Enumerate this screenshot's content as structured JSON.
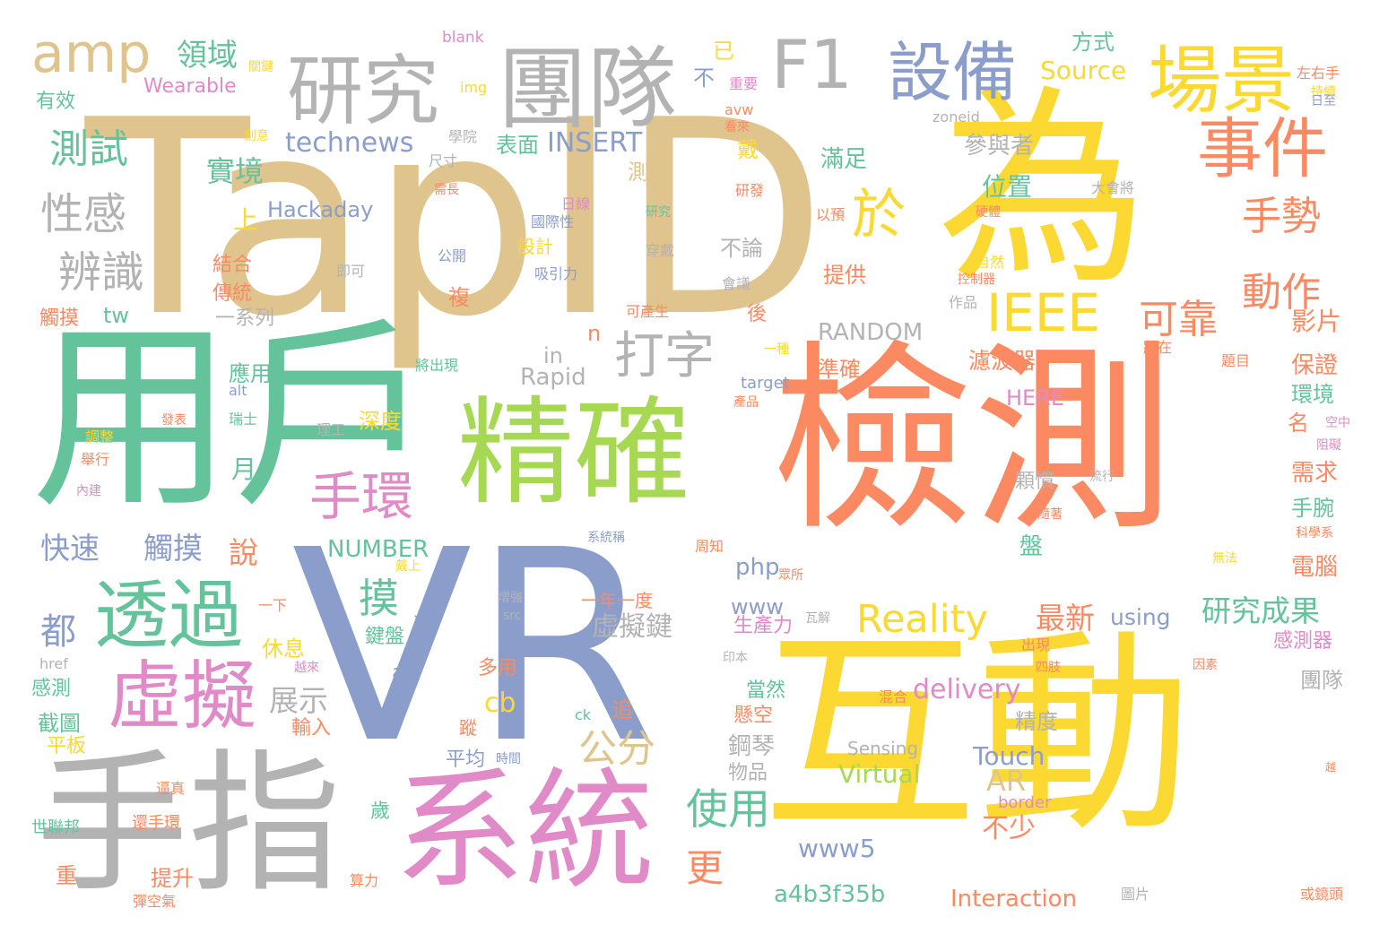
{
  "palette": {
    "tan": "#e0c48e",
    "yellow": "#fbd932",
    "orange": "#fb8a62",
    "green": "#64c39b",
    "blue": "#8b9ecb",
    "pink": "#e08bc7",
    "lime": "#a6d854",
    "gray": "#b3b3b3"
  },
  "words": [
    {
      "text": "TapID",
      "color": "tan"
    },
    {
      "text": "為",
      "color": "yellow"
    },
    {
      "text": "檢測",
      "color": "orange"
    },
    {
      "text": "用戶",
      "color": "green"
    },
    {
      "text": "VR",
      "color": "blue"
    },
    {
      "text": "互動",
      "color": "yellow"
    },
    {
      "text": "手指",
      "color": "gray"
    },
    {
      "text": "系統",
      "color": "pink"
    },
    {
      "text": "精確",
      "color": "lime"
    },
    {
      "text": "團隊",
      "color": "gray"
    },
    {
      "text": "研究",
      "color": "gray"
    },
    {
      "text": "場景",
      "color": "yellow"
    },
    {
      "text": "設備",
      "color": "blue"
    },
    {
      "text": "F1",
      "color": "gray"
    },
    {
      "text": "amp",
      "color": "tan"
    },
    {
      "text": "事件",
      "color": "orange"
    },
    {
      "text": "IEEE",
      "color": "yellow"
    },
    {
      "text": "於",
      "color": "yellow"
    },
    {
      "text": "透過",
      "color": "green"
    },
    {
      "text": "虛擬",
      "color": "pink"
    },
    {
      "text": "手環",
      "color": "pink"
    },
    {
      "text": "打字",
      "color": "gray"
    },
    {
      "text": "可靠",
      "color": "orange"
    },
    {
      "text": "手勢",
      "color": "orange"
    },
    {
      "text": "動作",
      "color": "orange"
    },
    {
      "text": "Reality",
      "color": "yellow"
    },
    {
      "text": "測試",
      "color": "green"
    },
    {
      "text": "性感",
      "color": "gray"
    },
    {
      "text": "辨識",
      "color": "gray"
    },
    {
      "text": "公分",
      "color": "tan"
    },
    {
      "text": "使用",
      "color": "green"
    },
    {
      "text": "研究成果",
      "color": "green"
    },
    {
      "text": "technews",
      "color": "blue"
    },
    {
      "text": "INSERT",
      "color": "blue"
    },
    {
      "text": "Source",
      "color": "yellow"
    },
    {
      "text": "Wearable",
      "color": "pink"
    },
    {
      "text": "Hackaday",
      "color": "blue"
    },
    {
      "text": "快速",
      "color": "blue"
    },
    {
      "text": "觸摸",
      "color": "blue"
    },
    {
      "text": "實境",
      "color": "green"
    },
    {
      "text": "領域",
      "color": "green"
    },
    {
      "text": "說",
      "color": "orange"
    },
    {
      "text": "都",
      "color": "blue"
    },
    {
      "text": "摸",
      "color": "green"
    },
    {
      "text": "NUMBER",
      "color": "green"
    },
    {
      "text": "php",
      "color": "blue"
    },
    {
      "text": "www",
      "color": "blue"
    },
    {
      "text": "虛擬鍵",
      "color": "gray"
    },
    {
      "text": "delivery",
      "color": "pink"
    },
    {
      "text": "最新",
      "color": "orange"
    },
    {
      "text": "using",
      "color": "blue"
    },
    {
      "text": "Rapid",
      "color": "gray"
    },
    {
      "text": "RANDOM",
      "color": "gray"
    },
    {
      "text": "a4b3f35b",
      "color": "green"
    },
    {
      "text": "Interaction",
      "color": "orange"
    },
    {
      "text": "www5",
      "color": "blue"
    },
    {
      "text": "Touch",
      "color": "blue"
    },
    {
      "text": "Virtual",
      "color": "lime"
    },
    {
      "text": "AR",
      "color": "tan"
    },
    {
      "text": "更",
      "color": "orange"
    },
    {
      "text": "不少",
      "color": "orange"
    },
    {
      "text": "展示",
      "color": "gray"
    },
    {
      "text": "位置",
      "color": "green"
    },
    {
      "text": "滿足",
      "color": "green"
    },
    {
      "text": "參與者",
      "color": "gray"
    },
    {
      "text": "濾波器",
      "color": "orange"
    },
    {
      "text": "HERE",
      "color": "pink"
    },
    {
      "text": "cb",
      "color": "yellow"
    },
    {
      "text": "鋼琴",
      "color": "gray"
    },
    {
      "text": "精度",
      "color": "gray"
    },
    {
      "text": "影片",
      "color": "orange"
    },
    {
      "text": "保證",
      "color": "orange"
    },
    {
      "text": "環境",
      "color": "green"
    },
    {
      "text": "需求",
      "color": "orange"
    },
    {
      "text": "手腕",
      "color": "green"
    },
    {
      "text": "電腦",
      "color": "orange"
    },
    {
      "text": "感測器",
      "color": "pink"
    },
    {
      "text": "團隊",
      "color": "gray"
    },
    {
      "text": "方式",
      "color": "green"
    },
    {
      "text": "已",
      "color": "yellow"
    },
    {
      "text": "不",
      "color": "blue"
    },
    {
      "text": "表面",
      "color": "green"
    },
    {
      "text": "測器",
      "color": "tan"
    },
    {
      "text": "戴",
      "color": "yellow"
    },
    {
      "text": "提供",
      "color": "orange"
    },
    {
      "text": "不論",
      "color": "gray"
    },
    {
      "text": "準確",
      "color": "orange"
    },
    {
      "text": "深度",
      "color": "yellow"
    },
    {
      "text": "應用",
      "color": "green"
    },
    {
      "text": "休息",
      "color": "yellow"
    },
    {
      "text": "輸入",
      "color": "orange"
    },
    {
      "text": "截圖",
      "color": "green"
    },
    {
      "text": "感測",
      "color": "green"
    },
    {
      "text": "平板",
      "color": "yellow"
    },
    {
      "text": "提升",
      "color": "orange"
    },
    {
      "text": "多用",
      "color": "orange"
    },
    {
      "text": "平均",
      "color": "blue"
    },
    {
      "text": "生產力",
      "color": "pink"
    },
    {
      "text": "當然",
      "color": "green"
    },
    {
      "text": "懸空",
      "color": "orange"
    },
    {
      "text": "物品",
      "color": "gray"
    },
    {
      "text": "一系列",
      "color": "gray"
    },
    {
      "text": "結合",
      "color": "orange"
    },
    {
      "text": "傳統",
      "color": "orange"
    },
    {
      "text": "觸摸",
      "color": "orange"
    },
    {
      "text": "有效",
      "color": "green"
    },
    {
      "text": "設計",
      "color": "yellow"
    },
    {
      "text": "一年一度",
      "color": "orange"
    },
    {
      "text": "月",
      "color": "green"
    },
    {
      "text": "上",
      "color": "yellow"
    },
    {
      "text": "tw",
      "color": "green"
    },
    {
      "text": "n",
      "color": "orange"
    },
    {
      "text": "in",
      "color": "gray"
    },
    {
      "text": "a",
      "color": "blue"
    },
    {
      "text": "追",
      "color": "orange"
    },
    {
      "text": "蹤",
      "color": "orange"
    },
    {
      "text": "歲",
      "color": "green"
    },
    {
      "text": "盤",
      "color": "green"
    },
    {
      "text": "名",
      "color": "orange"
    },
    {
      "text": "後",
      "color": "orange"
    },
    {
      "text": "複",
      "color": "orange"
    },
    {
      "text": "鍵盤",
      "color": "green"
    },
    {
      "text": "顆慣",
      "color": "gray"
    },
    {
      "text": "Sensing",
      "color": "gray"
    },
    {
      "text": "border",
      "color": "pink"
    },
    {
      "text": "target",
      "color": "blue"
    },
    {
      "text": "zoneid",
      "color": "gray"
    },
    {
      "text": "blank",
      "color": "pink"
    },
    {
      "text": "img",
      "color": "yellow"
    },
    {
      "text": "avw",
      "color": "orange"
    },
    {
      "text": "alt",
      "color": "blue"
    },
    {
      "text": "href",
      "color": "gray"
    },
    {
      "text": "src",
      "color": "gray"
    },
    {
      "text": "XR",
      "color": "blue"
    },
    {
      "text": "ck",
      "color": "green"
    },
    {
      "text": "左右手",
      "color": "orange"
    },
    {
      "text": "持續",
      "color": "yellow"
    },
    {
      "text": "日至",
      "color": "blue"
    },
    {
      "text": "學院",
      "color": "gray"
    },
    {
      "text": "尺寸",
      "color": "gray"
    },
    {
      "text": "需長",
      "color": "orange"
    },
    {
      "text": "日線",
      "color": "pink"
    },
    {
      "text": "國際性",
      "color": "blue"
    },
    {
      "text": "研究",
      "color": "green"
    },
    {
      "text": "以預",
      "color": "orange"
    },
    {
      "text": "大會將",
      "color": "gray"
    },
    {
      "text": "硬體",
      "color": "orange"
    },
    {
      "text": "研發",
      "color": "orange"
    },
    {
      "text": "看來",
      "color": "orange"
    },
    {
      "text": "重要",
      "color": "pink"
    },
    {
      "text": "創意",
      "color": "yellow"
    },
    {
      "text": "關鍵",
      "color": "yellow"
    },
    {
      "text": "公開",
      "color": "blue"
    },
    {
      "text": "吸引力",
      "color": "blue"
    },
    {
      "text": "穿戴",
      "color": "gray"
    },
    {
      "text": "會議",
      "color": "gray"
    },
    {
      "text": "自然",
      "color": "yellow"
    },
    {
      "text": "控制器",
      "color": "orange"
    },
    {
      "text": "作品",
      "color": "gray"
    },
    {
      "text": "即可",
      "color": "gray"
    },
    {
      "text": "可產生",
      "color": "orange"
    },
    {
      "text": "一種",
      "color": "yellow"
    },
    {
      "text": "將在",
      "color": "orange"
    },
    {
      "text": "題目",
      "color": "orange"
    },
    {
      "text": "將出現",
      "color": "green"
    },
    {
      "text": "產品",
      "color": "orange"
    },
    {
      "text": "理工",
      "color": "gray"
    },
    {
      "text": "瑞士",
      "color": "green"
    },
    {
      "text": "調整",
      "color": "yellow"
    },
    {
      "text": "發表",
      "color": "orange"
    },
    {
      "text": "舉行",
      "color": "orange"
    },
    {
      "text": "內建",
      "color": "pink"
    },
    {
      "text": "空中",
      "color": "pink"
    },
    {
      "text": "阻礙",
      "color": "pink"
    },
    {
      "text": "流行",
      "color": "gray"
    },
    {
      "text": "隨著",
      "color": "orange"
    },
    {
      "text": "系統稱",
      "color": "blue"
    },
    {
      "text": "周知",
      "color": "orange"
    },
    {
      "text": "科學系",
      "color": "orange"
    },
    {
      "text": "無法",
      "color": "yellow"
    },
    {
      "text": "眾所",
      "color": "orange"
    },
    {
      "text": "增強",
      "color": "gray"
    },
    {
      "text": "戴上",
      "color": "yellow"
    },
    {
      "text": "一下",
      "color": "orange"
    },
    {
      "text": "越來",
      "color": "pink"
    },
    {
      "text": "印本",
      "color": "gray"
    },
    {
      "text": "瓦解",
      "color": "gray"
    },
    {
      "text": "出現",
      "color": "orange"
    },
    {
      "text": "四肢",
      "color": "orange"
    },
    {
      "text": "混合",
      "color": "orange"
    },
    {
      "text": "因素",
      "color": "orange"
    },
    {
      "text": "時間",
      "color": "blue"
    },
    {
      "text": "越",
      "color": "orange"
    },
    {
      "text": "逼真",
      "color": "orange"
    },
    {
      "text": "還手環",
      "color": "orange"
    },
    {
      "text": "世聯邦",
      "color": "green"
    },
    {
      "text": "重",
      "color": "orange"
    },
    {
      "text": "彈空氣",
      "color": "orange"
    },
    {
      "text": "算力",
      "color": "orange"
    },
    {
      "text": "圖片",
      "color": "gray"
    },
    {
      "text": "或鏡頭",
      "color": "orange"
    }
  ]
}
